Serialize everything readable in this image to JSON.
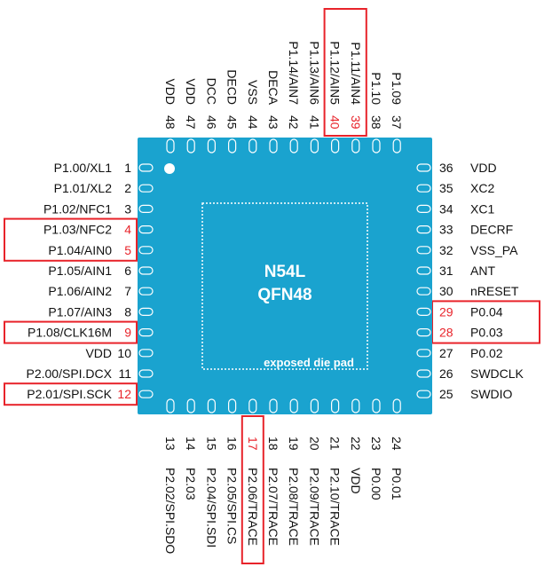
{
  "chip": {
    "title_line1": "N54L",
    "title_line2": "QFN48",
    "pad_label": "exposed die pad",
    "body_color": "#1aa3cf",
    "highlight_color": "#e8232a"
  },
  "pins": {
    "left": [
      {
        "num": "1",
        "label": "P1.00/XL1",
        "highlight": false
      },
      {
        "num": "2",
        "label": "P1.01/XL2",
        "highlight": false
      },
      {
        "num": "3",
        "label": "P1.02/NFC1",
        "highlight": false
      },
      {
        "num": "4",
        "label": "P1.03/NFC2",
        "highlight": true
      },
      {
        "num": "5",
        "label": "P1.04/AIN0",
        "highlight": true
      },
      {
        "num": "6",
        "label": "P1.05/AIN1",
        "highlight": false
      },
      {
        "num": "7",
        "label": "P1.06/AIN2",
        "highlight": false
      },
      {
        "num": "8",
        "label": "P1.07/AIN3",
        "highlight": false
      },
      {
        "num": "9",
        "label": "P1.08/CLK16M",
        "highlight": true
      },
      {
        "num": "10",
        "label": "VDD",
        "highlight": false
      },
      {
        "num": "11",
        "label": "P2.00/SPI.DCX",
        "highlight": false
      },
      {
        "num": "12",
        "label": "P2.01/SPI.SCK",
        "highlight": true
      }
    ],
    "right": [
      {
        "num": "36",
        "label": "VDD",
        "highlight": false
      },
      {
        "num": "35",
        "label": "XC2",
        "highlight": false
      },
      {
        "num": "34",
        "label": "XC1",
        "highlight": false
      },
      {
        "num": "33",
        "label": "DECRF",
        "highlight": false
      },
      {
        "num": "32",
        "label": "VSS_PA",
        "highlight": false
      },
      {
        "num": "31",
        "label": "ANT",
        "highlight": false
      },
      {
        "num": "30",
        "label": "nRESET",
        "highlight": false
      },
      {
        "num": "29",
        "label": "P0.04",
        "highlight": true
      },
      {
        "num": "28",
        "label": "P0.03",
        "highlight": true
      },
      {
        "num": "27",
        "label": "P0.02",
        "highlight": false
      },
      {
        "num": "26",
        "label": "SWDCLK",
        "highlight": false
      },
      {
        "num": "25",
        "label": "SWDIO",
        "highlight": false
      }
    ],
    "top": [
      {
        "num": "48",
        "label": "VDD",
        "highlight": false
      },
      {
        "num": "47",
        "label": "VDD",
        "highlight": false
      },
      {
        "num": "46",
        "label": "DCC",
        "highlight": false
      },
      {
        "num": "45",
        "label": "DECD",
        "highlight": false
      },
      {
        "num": "44",
        "label": "VSS",
        "highlight": false
      },
      {
        "num": "43",
        "label": "DECA",
        "highlight": false
      },
      {
        "num": "42",
        "label": "P1.14/AIN7",
        "highlight": false
      },
      {
        "num": "41",
        "label": "P1.13/AIN6",
        "highlight": false
      },
      {
        "num": "40",
        "label": "P1.12/AIN5",
        "highlight": true
      },
      {
        "num": "39",
        "label": "P1.11/AIN4",
        "highlight": true
      },
      {
        "num": "38",
        "label": "P1.10",
        "highlight": false
      },
      {
        "num": "37",
        "label": "P1.09",
        "highlight": false
      }
    ],
    "bottom": [
      {
        "num": "13",
        "label": "P2.02/SPI.SDO",
        "highlight": false
      },
      {
        "num": "14",
        "label": "P2.03",
        "highlight": false
      },
      {
        "num": "15",
        "label": "P2.04/SPI.SDI",
        "highlight": false
      },
      {
        "num": "16",
        "label": "P2.05/SPI.CS",
        "highlight": false
      },
      {
        "num": "17",
        "label": "P2.06/TRACE",
        "highlight": true
      },
      {
        "num": "18",
        "label": "P2.07/TRACE",
        "highlight": false
      },
      {
        "num": "19",
        "label": "P2.08/TRACE",
        "highlight": false
      },
      {
        "num": "20",
        "label": "P2.09/TRACE",
        "highlight": false
      },
      {
        "num": "21",
        "label": "P2.10/TRACE",
        "highlight": false
      },
      {
        "num": "22",
        "label": "VDD",
        "highlight": false
      },
      {
        "num": "23",
        "label": "P0.00",
        "highlight": false
      },
      {
        "num": "24",
        "label": "P0.01",
        "highlight": false
      }
    ]
  }
}
